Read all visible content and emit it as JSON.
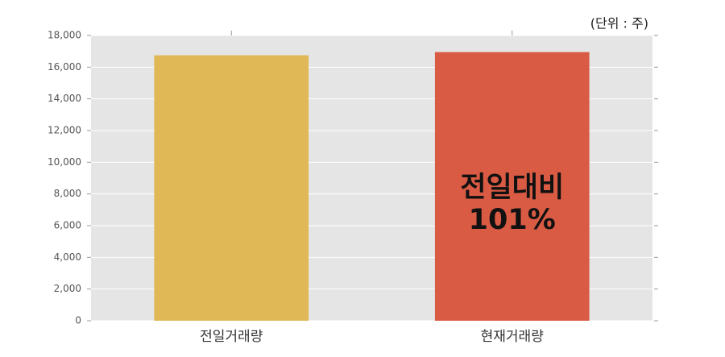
{
  "chart_data": {
    "type": "bar",
    "unit_label": "(단위 : 주)",
    "categories": [
      "전일거래량",
      "현재거래량"
    ],
    "values": [
      16750,
      16950
    ],
    "colors": [
      "#e0b856",
      "#d95b43"
    ],
    "ylim": [
      0,
      18000
    ],
    "yticks": [
      0,
      {
        "value": 2000,
        "label": "2,000"
      },
      {
        "value": 4000,
        "label": "4,000"
      },
      {
        "value": 6000,
        "label": "6,000"
      },
      {
        "value": 8000,
        "label": "8,000"
      },
      {
        "value": 10000,
        "label": "10,000"
      },
      {
        "value": 12000,
        "label": "12,000"
      },
      {
        "value": 14000,
        "label": "14,000"
      },
      {
        "value": 16000,
        "label": "16,000"
      },
      {
        "value": 18000,
        "label": "18,000"
      }
    ],
    "grid": true,
    "annotation": [
      "전일대비",
      "101%"
    ]
  }
}
